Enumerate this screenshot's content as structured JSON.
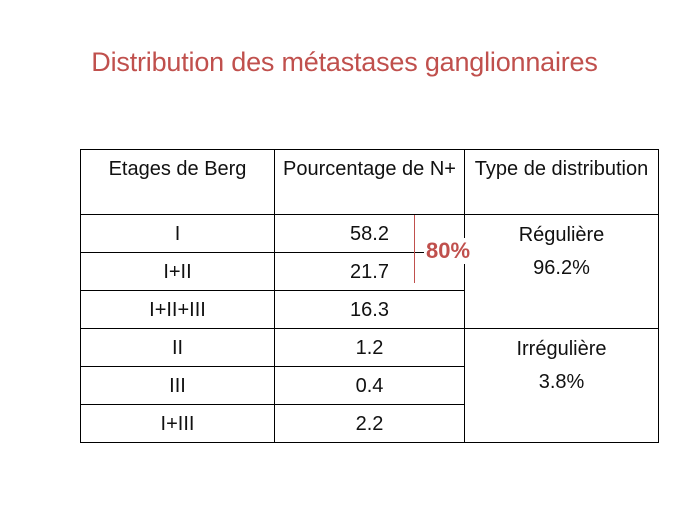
{
  "title": "Distribution des métastases ganglionnaires",
  "table": {
    "headers": [
      "Etages de Berg",
      "Pourcentage de N+",
      "Type de distribution"
    ],
    "rows": [
      {
        "etage": "I",
        "pct": "58.2"
      },
      {
        "etage": "I+II",
        "pct": "21.7"
      },
      {
        "etage": "I+II+III",
        "pct": "16.3"
      },
      {
        "etage": "II",
        "pct": "1.2"
      },
      {
        "etage": "III",
        "pct": "0.4"
      },
      {
        "etage": "I+III",
        "pct": "2.2"
      }
    ],
    "groups": [
      {
        "type": "Régulière",
        "pct": "96.2%"
      },
      {
        "type": "Irrégulière",
        "pct": "3.8%"
      }
    ]
  },
  "annotation": {
    "label": "80%",
    "color": "#c0504d"
  },
  "colors": {
    "title": "#c0504d",
    "border": "#000000",
    "text": "#111111"
  }
}
